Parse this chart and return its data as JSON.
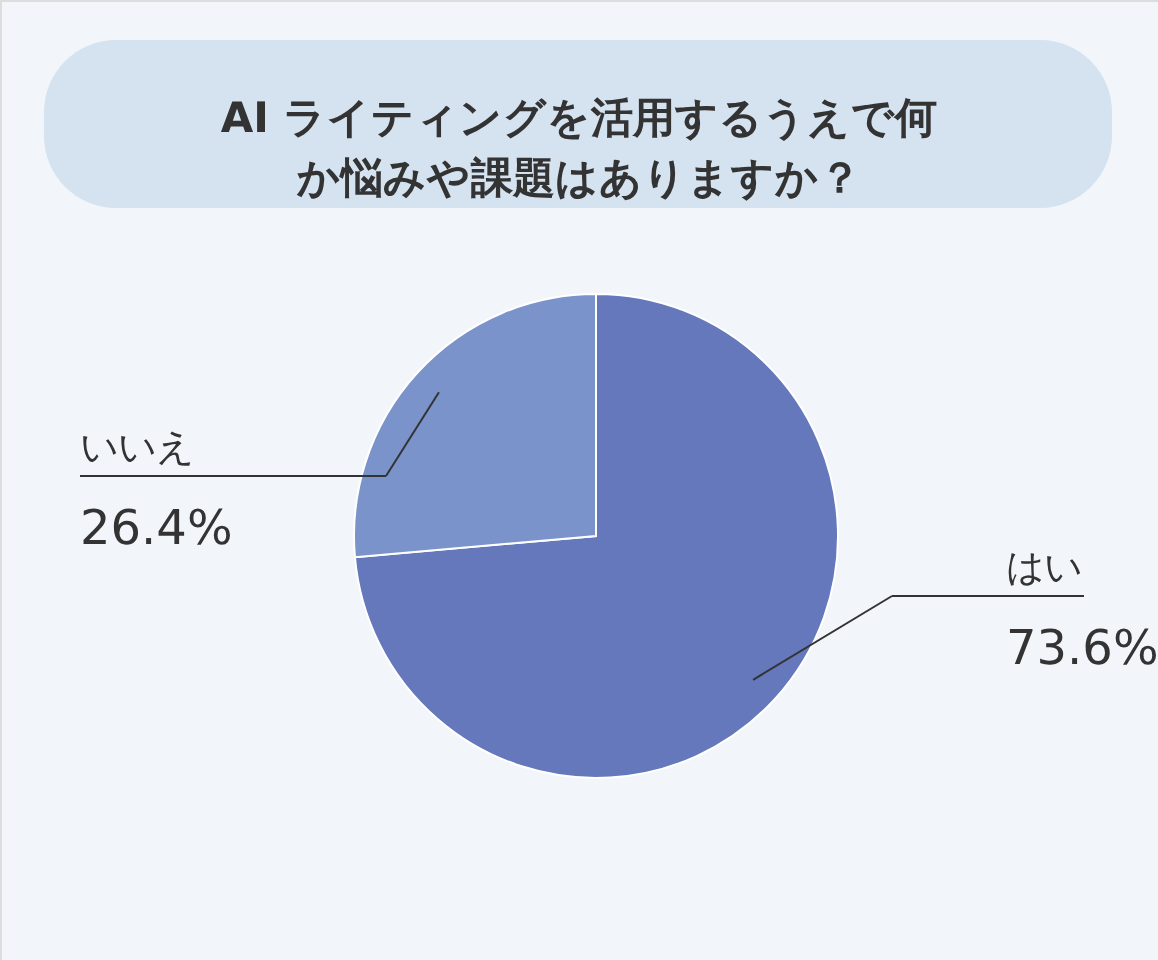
{
  "chart_data": {
    "type": "pie",
    "title": "AI ライティングを活用するうえで何か悩みや課題はありますか？",
    "categories": [
      "はい",
      "いいえ"
    ],
    "values": [
      73.6,
      26.4
    ],
    "colors": [
      "#6478bb",
      "#7b93cb"
    ],
    "value_labels": [
      "73.6%",
      "26.4%"
    ]
  }
}
